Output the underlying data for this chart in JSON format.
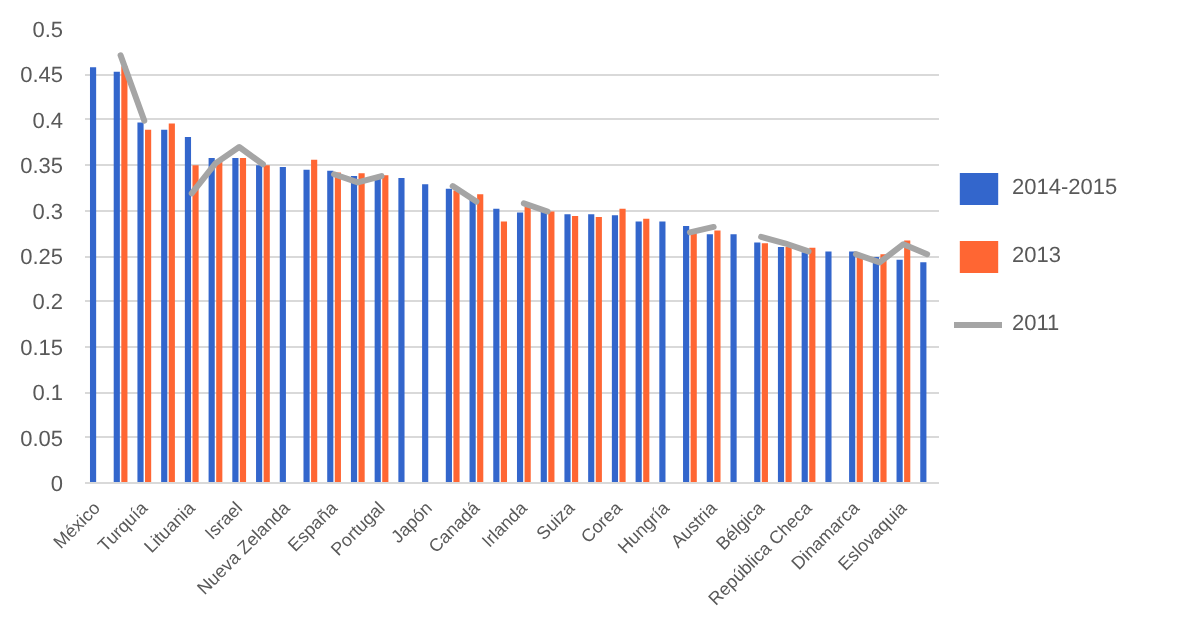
{
  "chart_data": {
    "type": "bar",
    "categories": [
      "México",
      null,
      "Turquía",
      null,
      "Lituania",
      null,
      "Israel",
      null,
      "Nueva Zelanda",
      null,
      "España",
      null,
      "Portugal",
      null,
      "Japón",
      null,
      "Canadá",
      null,
      "Irlanda",
      null,
      "Suiza",
      null,
      "Corea",
      null,
      "Hungría",
      null,
      "Austria",
      null,
      "Bélgica",
      null,
      "República Checa",
      null,
      "Dinamarca",
      null,
      "Eslovaquia",
      null
    ],
    "series": [
      {
        "name": "2014-2015",
        "color": "#3366cc",
        "values": [
          0.458,
          0.453,
          0.397,
          0.389,
          0.381,
          0.358,
          0.358,
          0.35,
          0.348,
          0.345,
          0.344,
          0.338,
          0.336,
          0.336,
          0.329,
          0.324,
          0.314,
          0.302,
          0.298,
          0.299,
          0.296,
          0.296,
          0.295,
          0.288,
          0.288,
          0.283,
          0.274,
          0.274,
          0.265,
          0.26,
          0.254,
          0.255,
          0.255,
          0.249,
          0.246,
          0.243
        ]
      },
      {
        "name": "2013",
        "color": "#ff6633",
        "values": [
          null,
          0.459,
          0.389,
          0.396,
          0.35,
          0.355,
          0.358,
          0.35,
          null,
          0.356,
          0.342,
          0.341,
          0.339,
          null,
          null,
          0.322,
          0.318,
          0.288,
          0.305,
          0.299,
          0.294,
          0.293,
          0.302,
          0.291,
          null,
          0.276,
          0.278,
          null,
          0.264,
          0.26,
          0.259,
          null,
          0.251,
          0.252,
          0.267,
          null
        ]
      },
      {
        "name": "2011",
        "type": "line",
        "color": "#a5a5a5",
        "values": [
          null,
          0.471,
          0.399,
          null,
          0.319,
          0.352,
          0.37,
          0.351,
          null,
          null,
          0.34,
          0.331,
          0.338,
          null,
          null,
          0.327,
          0.31,
          null,
          0.308,
          0.299,
          null,
          null,
          null,
          null,
          null,
          0.276,
          0.282,
          null,
          0.271,
          0.264,
          0.255,
          null,
          0.252,
          0.243,
          0.263,
          0.252
        ]
      }
    ],
    "ylim": [
      0,
      0.5
    ],
    "yticks": [
      0,
      0.05,
      0.1,
      0.15,
      0.2,
      0.25,
      0.3,
      0.35,
      0.4,
      0.45,
      0.5
    ],
    "grid": "y",
    "legend": "right"
  }
}
